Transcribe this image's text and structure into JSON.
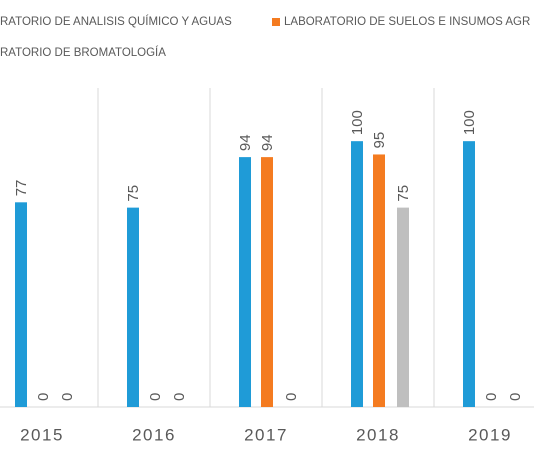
{
  "chart_data": {
    "type": "bar",
    "categories": [
      "2015",
      "2016",
      "2017",
      "2018",
      "2019"
    ],
    "series": [
      {
        "name": "RATORIO DE ANALISIS QUÍMICO Y AGUAS",
        "color": "#1f9bd7",
        "values": [
          77,
          75,
          94,
          100,
          100
        ]
      },
      {
        "name": "LABORATORIO DE SUELOS E INSUMOS AGR",
        "color": "#f47b20",
        "values": [
          0,
          0,
          94,
          95,
          0
        ]
      },
      {
        "name": "RATORIO DE BROMATOLOGÍA",
        "color": "#bfbfbf",
        "values": [
          0,
          0,
          0,
          75,
          0
        ]
      }
    ],
    "ylim": [
      0,
      120
    ]
  }
}
